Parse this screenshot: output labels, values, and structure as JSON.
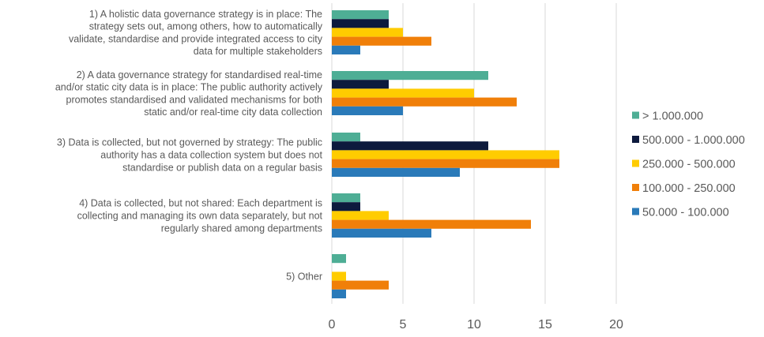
{
  "chart_data": {
    "type": "bar",
    "orientation": "horizontal",
    "categories": [
      "1) A holistic data governance strategy is in place: The strategy sets out, among others, how to automatically validate, standardise and provide integrated access to city data for multiple stakeholders",
      "2) A data governance strategy for standardised real-time and/or static city data is in place: The public authority actively promotes standardised and validated mechanisms for both static and/or real-time city data collection",
      "3) Data is collected, but not governed by strategy: The public authority has a data collection system but does not standardise or publish data on a regular basis",
      "4) Data is collected, but not shared: Each department is collecting and managing its own data separately, but not regularly shared among departments",
      "5) Other"
    ],
    "category_lines": [
      [
        "1) A holistic data governance strategy is in place: The",
        "strategy sets out, among others, how to automatically",
        "validate, standardise and provide integrated access to city",
        "data for multiple stakeholders"
      ],
      [
        "2) A data governance strategy for standardised real-time",
        "and/or static city data is in place: The public authority actively",
        "promotes standardised and validated mechanisms for both",
        "static and/or real-time city data collection"
      ],
      [
        "3) Data is collected, but not governed by strategy: The public",
        "authority has a data collection system but does not",
        "standardise or publish data on a regular basis"
      ],
      [
        "4) Data is collected, but not shared: Each department is",
        "collecting and managing its own data separately, but not",
        "regularly shared among departments"
      ],
      [
        "5) Other"
      ]
    ],
    "series": [
      {
        "name": "> 1.000.000",
        "color": "#4eae95",
        "values": [
          4,
          11,
          2,
          2,
          1
        ]
      },
      {
        "name": "500.000 - 1.000.000",
        "color": "#0d1a3d",
        "values": [
          4,
          4,
          11,
          2,
          0
        ]
      },
      {
        "name": "250.000 - 500.000",
        "color": "#ffcc00",
        "values": [
          5,
          10,
          16,
          4,
          1
        ]
      },
      {
        "name": "100.000 - 250.000",
        "color": "#f07f09",
        "values": [
          7,
          13,
          16,
          14,
          4
        ]
      },
      {
        "name": "50.000 - 100.000",
        "color": "#2a7ab9",
        "values": [
          2,
          5,
          9,
          7,
          1
        ]
      }
    ],
    "xlim": [
      0,
      20
    ],
    "xticks": [
      0,
      5,
      10,
      15,
      20
    ],
    "title": "",
    "xlabel": "",
    "ylabel": "",
    "grid": true,
    "legend_position": "right"
  }
}
